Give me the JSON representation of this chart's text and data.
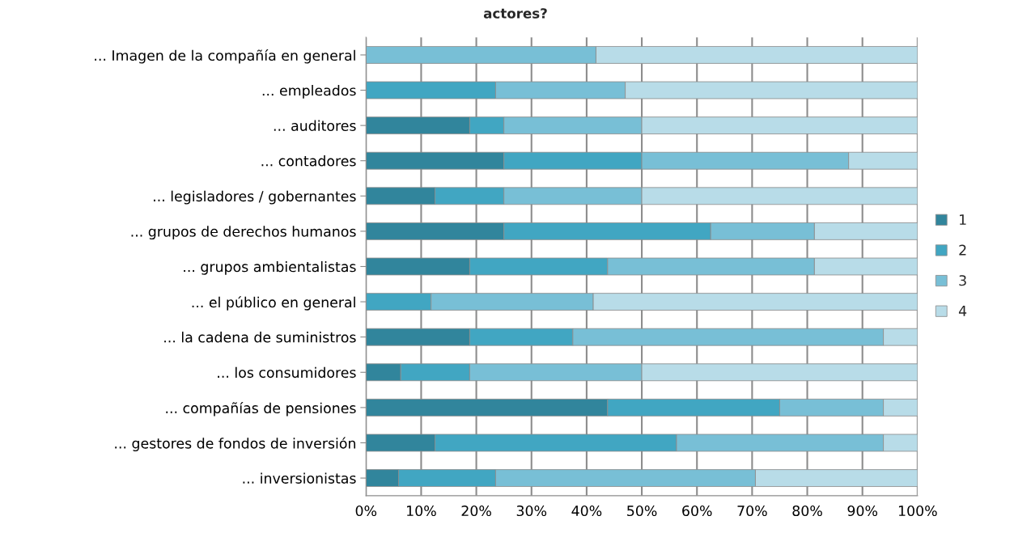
{
  "chart_data": {
    "type": "bar",
    "orientation": "horizontal",
    "stacked": true,
    "title": "actores?",
    "categories": [
      "... Imagen de la compañía en general",
      "... empleados",
      "... auditores",
      "... contadores",
      "... legisladores / gobernantes",
      "... grupos de derechos humanos",
      "... grupos ambientalistas",
      "... el público en general",
      "... la cadena de suministros",
      "... los consumidores",
      "... compañías de pensiones",
      "... gestores de fondos de inversión",
      "... inversionistas"
    ],
    "series": [
      {
        "name": "1",
        "color": "#31859c",
        "values": [
          0,
          0,
          18.8,
          25,
          12.5,
          25,
          18.8,
          0,
          18.8,
          6.3,
          43.8,
          12.5,
          5.9
        ]
      },
      {
        "name": "2",
        "color": "#41a6c2",
        "values": [
          0,
          23.5,
          6.2,
          25,
          12.5,
          37.5,
          25,
          11.8,
          18.7,
          12.5,
          31.2,
          43.8,
          17.6
        ]
      },
      {
        "name": "3",
        "color": "#78bfd6",
        "values": [
          41.7,
          23.5,
          25,
          37.5,
          25,
          18.8,
          37.5,
          29.4,
          56.3,
          31.2,
          18.8,
          37.5,
          47.1
        ]
      },
      {
        "name": "4",
        "color": "#b8dce8",
        "values": [
          58.3,
          53,
          50,
          12.5,
          50,
          18.7,
          18.7,
          58.8,
          6.2,
          50,
          6.2,
          6.2,
          29.4
        ]
      }
    ],
    "xlim": [
      0,
      100
    ],
    "xticks": [
      {
        "value": 0,
        "label": "0%"
      },
      {
        "value": 10,
        "label": "10%"
      },
      {
        "value": 20,
        "label": "20%"
      },
      {
        "value": 30,
        "label": "30%"
      },
      {
        "value": 40,
        "label": "40%"
      },
      {
        "value": 50,
        "label": "50%"
      },
      {
        "value": 60,
        "label": "60%"
      },
      {
        "value": 70,
        "label": "70%"
      },
      {
        "value": 80,
        "label": "80%"
      },
      {
        "value": 90,
        "label": "90%"
      },
      {
        "value": 100,
        "label": "100%"
      }
    ],
    "grid": "x",
    "legend": "right"
  }
}
